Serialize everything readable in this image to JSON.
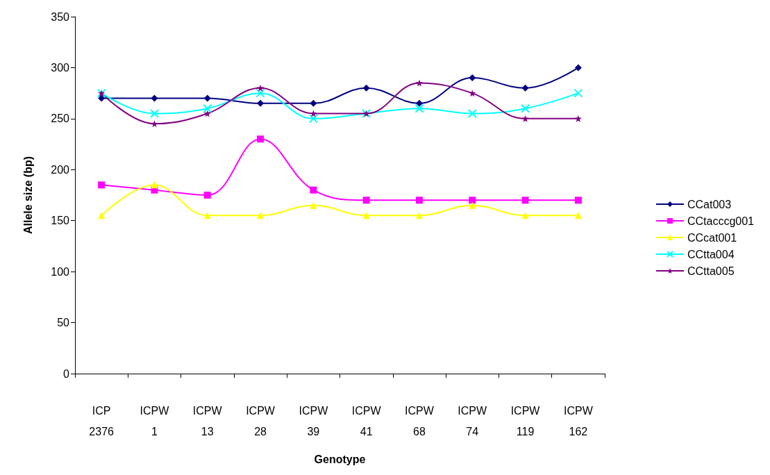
{
  "chart_data": {
    "type": "line",
    "xlabel": "Genotype",
    "ylabel": "Allele size (bp)",
    "categories": [
      "ICP\n2376",
      "ICPW\n1",
      "ICPW\n13",
      "ICPW\n28",
      "ICPW\n39",
      "ICPW\n41",
      "ICPW\n68",
      "ICPW\n74",
      "ICPW\n119",
      "ICPW\n162"
    ],
    "series": [
      {
        "name": "CCat003",
        "color": "#000080",
        "marker": "diamond",
        "values": [
          270,
          270,
          270,
          265,
          265,
          280,
          265,
          290,
          280,
          300
        ]
      },
      {
        "name": "CCtacccg001",
        "color": "#ff00ff",
        "marker": "square",
        "values": [
          185,
          180,
          175,
          230,
          180,
          170,
          170,
          170,
          170,
          170
        ]
      },
      {
        "name": "CCcat001",
        "color": "#ffff00",
        "marker": "triangle",
        "values": [
          155,
          185,
          155,
          155,
          165,
          155,
          155,
          165,
          155,
          155
        ]
      },
      {
        "name": "CCtta004",
        "color": "#00ffff",
        "marker": "cross",
        "values": [
          275,
          255,
          260,
          275,
          250,
          255,
          260,
          255,
          260,
          275
        ]
      },
      {
        "name": "CCtta005",
        "color": "#800080",
        "marker": "star",
        "values": [
          275,
          245,
          255,
          280,
          255,
          255,
          285,
          275,
          250,
          250
        ]
      }
    ],
    "ylim": [
      0,
      350
    ],
    "yticks": [
      0,
      50,
      100,
      150,
      200,
      250,
      300,
      350
    ],
    "grid": false,
    "legend": "right",
    "line_style": "solid"
  }
}
